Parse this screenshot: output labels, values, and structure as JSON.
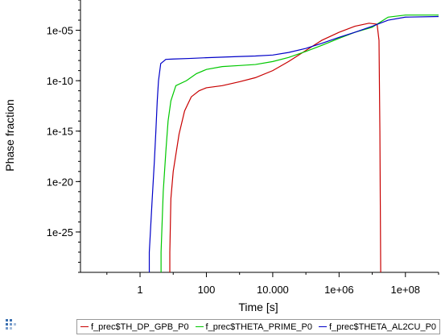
{
  "chart_data": {
    "type": "line",
    "xlabel": "Time [s]",
    "ylabel": "Phase fraction",
    "xscale": "log",
    "yscale": "log",
    "xlim": [
      0.016,
      1000000000.0
    ],
    "ylim": [
      1e-29,
      0.01
    ],
    "x_ticks": [
      {
        "value": 1,
        "label": "1"
      },
      {
        "value": 100,
        "label": "100"
      },
      {
        "value": 10000,
        "label": "10.000"
      },
      {
        "value": 1000000,
        "label": "1e+06"
      },
      {
        "value": 100000000,
        "label": "1e+08"
      }
    ],
    "y_ticks": [
      {
        "value": 1e-05,
        "label": "1e-05"
      },
      {
        "value": 1e-10,
        "label": "1e-10"
      },
      {
        "value": 1e-15,
        "label": "1e-15"
      },
      {
        "value": 1e-20,
        "label": "1e-20"
      },
      {
        "value": 1e-25,
        "label": "1e-25"
      }
    ],
    "legend_position": "bottom",
    "grid": false,
    "series": [
      {
        "name": "f_prec$TH_DP_GPB_P0",
        "color": "#c80000",
        "points": [
          [
            7.9,
            1e-29
          ],
          [
            7.9,
            1e-27
          ],
          [
            8.5,
            2e-22
          ],
          [
            10,
            1e-19
          ],
          [
            15,
            5e-16
          ],
          [
            22,
            1e-13
          ],
          [
            35,
            2.5e-12
          ],
          [
            60,
            1e-11
          ],
          [
            100,
            2e-11
          ],
          [
            300,
            3.2e-11
          ],
          [
            1000,
            7.9e-11
          ],
          [
            3000,
            2e-10
          ],
          [
            10000,
            1e-09
          ],
          [
            30000,
            7.9e-09
          ],
          [
            100000,
            1e-07
          ],
          [
            300000,
            1e-06
          ],
          [
            1000000,
            6.3e-06
          ],
          [
            3000000,
            2.5e-05
          ],
          [
            8000000,
            5e-05
          ],
          [
            14000000,
            4e-05
          ],
          [
            16000000,
            1e-06
          ],
          [
            17000000,
            1e-15
          ],
          [
            18000000,
            1e-29
          ]
        ]
      },
      {
        "name": "f_prec$THETA_PRIME_P0",
        "color": "#00c800",
        "points": [
          [
            4.3,
            1e-29
          ],
          [
            4.3,
            1e-27
          ],
          [
            5,
            1e-21
          ],
          [
            6,
            1e-17
          ],
          [
            7,
            1e-14
          ],
          [
            8.5,
            1e-12
          ],
          [
            12,
            3.2e-11
          ],
          [
            25,
            1e-10
          ],
          [
            50,
            5e-10
          ],
          [
            100,
            1.3e-09
          ],
          [
            300,
            2.5e-09
          ],
          [
            1000,
            3.2e-09
          ],
          [
            3000,
            4e-09
          ],
          [
            10000,
            7.9e-09
          ],
          [
            30000,
            2e-08
          ],
          [
            100000,
            7.9e-08
          ],
          [
            300000,
            3.2e-07
          ],
          [
            1000000,
            1.6e-06
          ],
          [
            3000000,
            6.3e-06
          ],
          [
            10000000,
            2e-05
          ],
          [
            30000000,
            0.0002
          ],
          [
            100000000,
            0.00032
          ],
          [
            1000000000,
            0.00032
          ]
        ]
      },
      {
        "name": "f_prec$THETA_AL2CU_P0",
        "color": "#0000c8",
        "points": [
          [
            1.9,
            1e-29
          ],
          [
            1.9,
            1e-27
          ],
          [
            2.3,
            1e-22
          ],
          [
            2.7,
            1e-18
          ],
          [
            3,
            1e-15
          ],
          [
            3.3,
            1e-12
          ],
          [
            3.6,
            1e-10
          ],
          [
            4.2,
            5e-09
          ],
          [
            6,
            1.3e-08
          ],
          [
            10,
            1.4e-08
          ],
          [
            30,
            1.6e-08
          ],
          [
            100,
            1.9e-08
          ],
          [
            1000,
            2.5e-08
          ],
          [
            3000,
            2.8e-08
          ],
          [
            10000,
            3.5e-08
          ],
          [
            30000,
            6.3e-08
          ],
          [
            100000,
            1.6e-07
          ],
          [
            300000,
            5e-07
          ],
          [
            1000000,
            2e-06
          ],
          [
            3000000,
            6.3e-06
          ],
          [
            10000000,
            2.5e-05
          ],
          [
            30000000,
            0.0001
          ],
          [
            100000000,
            0.0002
          ],
          [
            1000000000,
            0.00023
          ]
        ]
      }
    ]
  }
}
